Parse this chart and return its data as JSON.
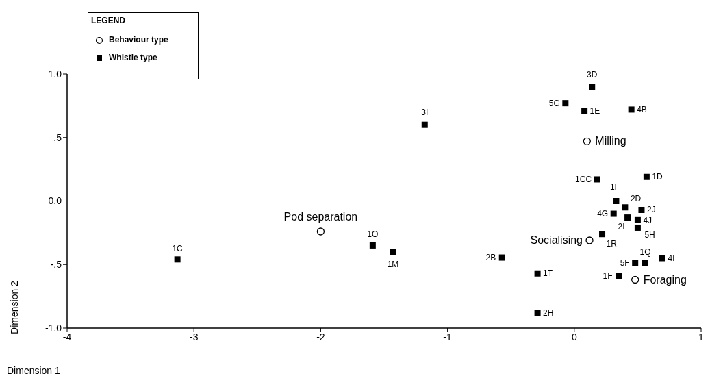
{
  "chart_data": {
    "type": "scatter",
    "xlabel": "Dimension 1",
    "ylabel": "Dimension 2",
    "legend_title": "LEGEND",
    "legend": "top left",
    "grid": false,
    "xlim": [
      -4,
      1
    ],
    "xticks": [
      -4,
      -3,
      -2,
      -1,
      0,
      1
    ],
    "ylim": [
      -1,
      1
    ],
    "yticks": [
      {
        "value": -1,
        "label": "-1.0"
      },
      {
        "value": -0.5,
        "label": "-.5"
      },
      {
        "value": 0,
        "label": "0.0"
      },
      {
        "value": 0.5,
        "label": ".5"
      },
      {
        "value": 1,
        "label": "1.0"
      }
    ],
    "series": [
      {
        "name": "Behaviour type",
        "color": "#000000",
        "marker": "circle",
        "x": [
          0.1,
          0.12,
          0.48,
          -2.0
        ],
        "values": [
          0.47,
          -0.31,
          -0.62,
          -0.24
        ]
      },
      {
        "name": "Whistle type",
        "color": "#000000",
        "marker": "square",
        "x": [
          -3.13,
          -1.59,
          -1.43,
          -1.18,
          -0.57,
          -0.29,
          -0.29,
          0.35,
          0.48,
          0.56,
          0.69,
          0.22,
          0.42,
          0.5,
          0.5,
          0.31,
          0.4,
          0.33,
          0.53,
          0.18,
          0.57,
          0.14,
          -0.07,
          0.08,
          0.45
        ],
        "values": [
          -0.46,
          -0.35,
          -0.4,
          0.6,
          -0.445,
          -0.57,
          -0.88,
          -0.59,
          -0.49,
          -0.49,
          -0.45,
          -0.26,
          -0.13,
          -0.15,
          -0.21,
          -0.1,
          -0.05,
          0.0,
          -0.07,
          0.17,
          0.19,
          0.9,
          0.77,
          0.71,
          0.72
        ]
      }
    ],
    "annotations": [
      {
        "text": "Milling",
        "x": 0.1,
        "y": 0.47
      },
      {
        "text": "Socialising",
        "x": 0.12,
        "y": -0.31
      },
      {
        "text": "Foraging",
        "x": 0.48,
        "y": -0.62
      },
      {
        "text": "Pod separation",
        "x": -2.0,
        "y": -0.24
      },
      {
        "text": "1C",
        "x": -3.13,
        "y": -0.46
      },
      {
        "text": "1O",
        "x": -1.59,
        "y": -0.35
      },
      {
        "text": "1M",
        "x": -1.43,
        "y": -0.4
      },
      {
        "text": "3I",
        "x": -1.18,
        "y": 0.6
      },
      {
        "text": "2B",
        "x": -0.57,
        "y": -0.445
      },
      {
        "text": "1T",
        "x": -0.29,
        "y": -0.57
      },
      {
        "text": "2H",
        "x": -0.29,
        "y": -0.88
      },
      {
        "text": "1F",
        "x": 0.35,
        "y": -0.59
      },
      {
        "text": "5F",
        "x": 0.48,
        "y": -0.49
      },
      {
        "text": "1Q",
        "x": 0.56,
        "y": -0.49
      },
      {
        "text": "4F",
        "x": 0.69,
        "y": -0.45
      },
      {
        "text": "1R",
        "x": 0.22,
        "y": -0.26
      },
      {
        "text": "2I",
        "x": 0.42,
        "y": -0.13
      },
      {
        "text": "4J",
        "x": 0.5,
        "y": -0.15
      },
      {
        "text": "5H",
        "x": 0.5,
        "y": -0.21
      },
      {
        "text": "4G",
        "x": 0.31,
        "y": -0.1
      },
      {
        "text": "2D",
        "x": 0.4,
        "y": -0.05
      },
      {
        "text": "1I",
        "x": 0.33,
        "y": 0.0
      },
      {
        "text": "2J",
        "x": 0.53,
        "y": -0.07
      },
      {
        "text": "1CC",
        "x": 0.18,
        "y": 0.17
      },
      {
        "text": "1D",
        "x": 0.57,
        "y": 0.19
      },
      {
        "text": "3D",
        "x": 0.14,
        "y": 0.9
      },
      {
        "text": "5G",
        "x": -0.07,
        "y": 0.77
      },
      {
        "text": "1E",
        "x": 0.08,
        "y": 0.71
      },
      {
        "text": "4B",
        "x": 0.45,
        "y": 0.72
      }
    ]
  }
}
